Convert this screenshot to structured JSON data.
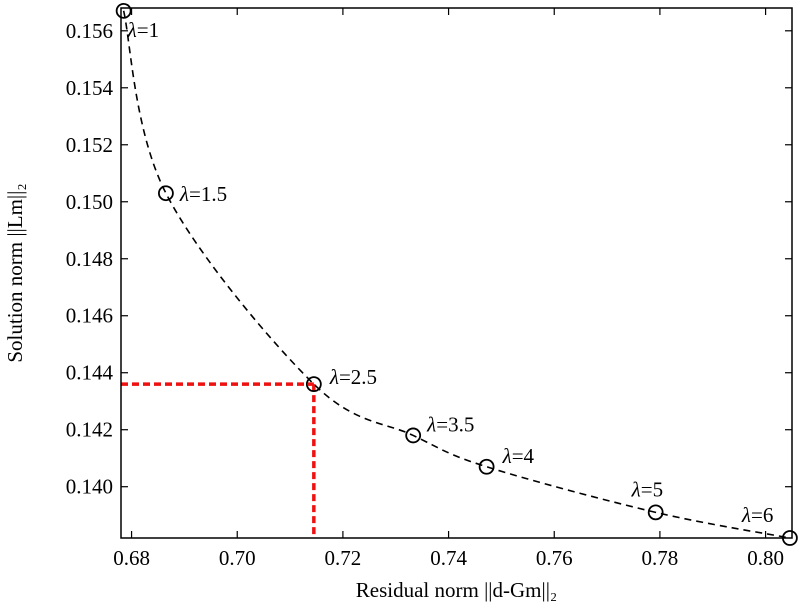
{
  "chart_data": {
    "type": "line",
    "title": "",
    "xlabel": "Residual norm ||d-Gm||₂",
    "ylabel": "Solution norm ||Lm||₂",
    "xlim": [
      0.678,
      0.805
    ],
    "ylim": [
      0.1382,
      0.1568
    ],
    "xticks": [
      0.68,
      0.7,
      0.72,
      0.74,
      0.76,
      0.78,
      0.8
    ],
    "yticks": [
      0.14,
      0.142,
      0.144,
      0.146,
      0.148,
      0.15,
      0.152,
      0.154,
      0.156
    ],
    "xtick_labels": [
      "0.68",
      "0.70",
      "0.72",
      "0.74",
      "0.76",
      "0.78",
      "0.80"
    ],
    "ytick_labels": [
      "0.140",
      "0.142",
      "0.144",
      "0.146",
      "0.148",
      "0.150",
      "0.152",
      "0.154",
      "0.156"
    ],
    "grid": false,
    "series": [
      {
        "style": "dashed",
        "color": "#000000",
        "marker": "open-circle",
        "points": [
          {
            "x": 0.6785,
            "y": 0.1567,
            "label": "1"
          },
          {
            "x": 0.6865,
            "y": 0.1503,
            "label": "1.5"
          },
          {
            "x": 0.7145,
            "y": 0.1436,
            "label": "2.5"
          },
          {
            "x": 0.7333,
            "y": 0.1418,
            "label": "3.5"
          },
          {
            "x": 0.7472,
            "y": 0.1407,
            "label": "4"
          },
          {
            "x": 0.7792,
            "y": 0.1391,
            "label": "5"
          },
          {
            "x": 0.8046,
            "y": 0.1382,
            "label": "6"
          }
        ]
      }
    ],
    "annotation": {
      "style": "dotted",
      "color": "#ee1111",
      "x": 0.7145,
      "y": 0.1436
    },
    "label_prefix": "λ="
  }
}
